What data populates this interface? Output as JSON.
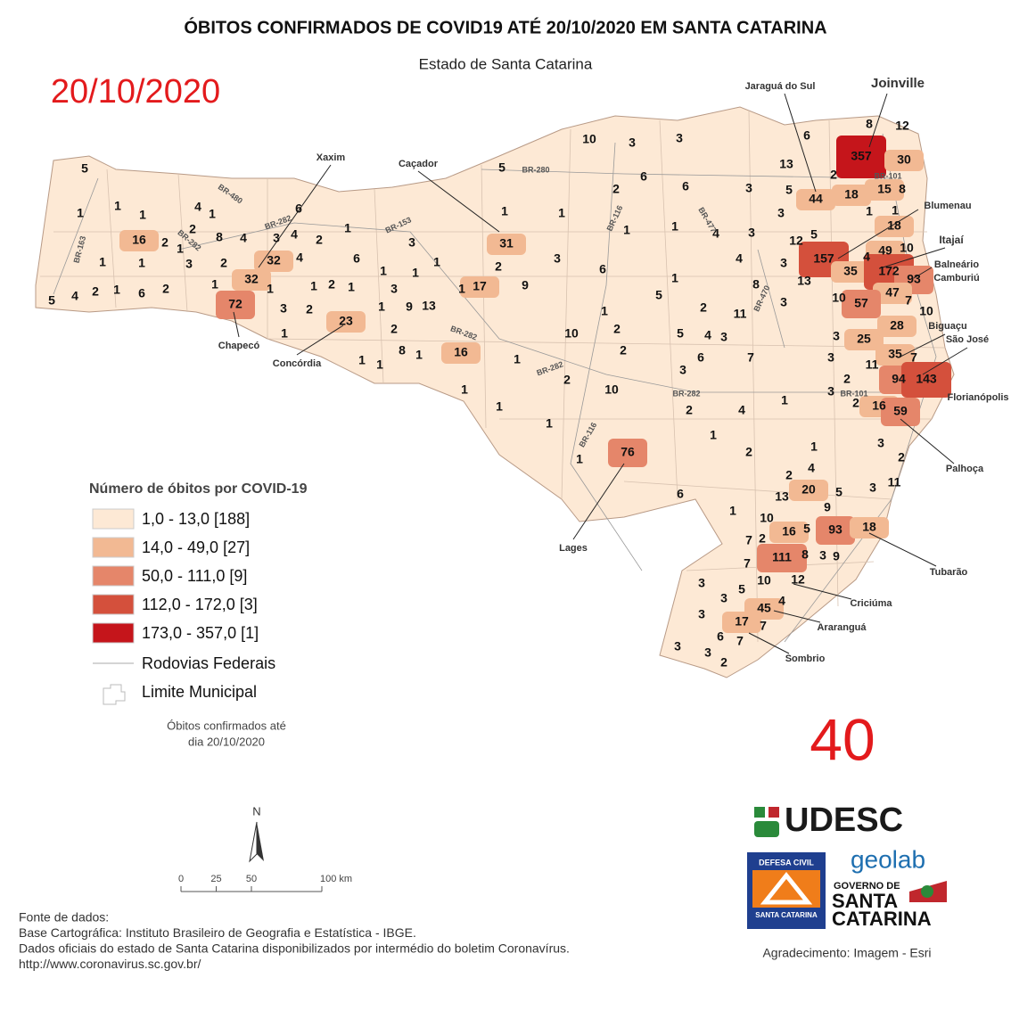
{
  "header": {
    "title": "ÓBITOS CONFIRMADOS DE COVID19 ATÉ 20/10/2020 EM SANTA CATARINA",
    "subtitle": "Estado de Santa Catarina",
    "date": "20/10/2020",
    "number": 40
  },
  "map": {
    "labels": [
      5,
      10,
      3,
      3,
      6,
      8,
      12,
      357,
      30,
      13,
      5,
      2,
      6,
      6,
      3,
      5,
      44,
      2,
      18,
      15,
      8,
      3,
      6,
      4,
      1,
      2,
      8,
      4,
      3,
      4,
      2,
      32,
      4,
      16,
      1,
      1,
      1,
      2,
      1,
      1,
      1,
      2,
      3,
      1,
      6,
      3,
      1,
      31,
      1,
      1,
      1,
      1,
      3,
      6,
      2,
      17,
      9,
      1,
      1,
      1,
      5,
      4,
      2,
      1,
      6,
      2,
      1,
      32,
      72,
      1,
      3,
      2,
      1,
      23,
      1,
      2,
      1,
      1,
      3,
      9,
      13,
      2,
      8,
      1,
      16,
      1,
      1,
      1,
      2,
      10,
      1,
      1,
      2,
      4,
      1,
      76,
      1,
      6,
      1,
      2,
      1,
      5,
      1,
      2,
      10,
      2,
      5,
      4,
      3,
      2,
      11,
      8,
      4,
      4,
      12,
      5,
      3,
      3,
      13,
      157,
      35,
      4,
      18,
      49,
      10,
      172,
      93,
      47,
      7,
      10,
      57,
      10,
      3,
      3,
      25,
      28,
      35,
      7,
      11,
      94,
      143,
      16,
      59,
      2,
      3,
      3,
      1,
      3,
      6,
      7,
      1,
      4,
      2,
      20,
      5,
      13,
      3,
      11,
      3,
      2,
      9,
      10,
      16,
      5,
      93,
      18,
      7,
      2,
      111,
      8,
      3,
      9,
      7,
      10,
      12,
      5,
      45,
      4,
      3,
      3,
      3,
      17,
      7,
      6,
      7,
      3,
      3,
      2,
      2,
      1,
      1,
      1
    ],
    "places": [
      "Xaxim",
      "Caçador",
      "Jaraguá do Sul",
      "Joinville",
      "Blumenau",
      "Itajaí",
      "Balneário",
      "Camburiú",
      "Biguaçu",
      "São José",
      "Florianópolis",
      "Palhoça",
      "Tubarão",
      "Criciúma",
      "Araranguá",
      "Sombrio",
      "Lages",
      "Chapecó",
      "Concórdia"
    ],
    "highways": [
      "BR-280",
      "BR-101",
      "BR-101",
      "BR-282",
      "BR-282",
      "BR-282",
      "BR-282",
      "BR-282",
      "BR-153",
      "BR-163",
      "BR-480",
      "BR-116",
      "BR-116",
      "BR-470",
      "BR-477"
    ]
  },
  "legend": {
    "title": "Número de óbitos por COVID-19",
    "classes": [
      {
        "label": "1,0 - 13,0 [188]",
        "color": "#fde9d5",
        "min": 1,
        "max": 13
      },
      {
        "label": "14,0 - 49,0 [27]",
        "color": "#f2b993",
        "min": 14,
        "max": 49
      },
      {
        "label": "50,0 - 111,0 [9]",
        "color": "#e5866a",
        "min": 50,
        "max": 111
      },
      {
        "label": "112,0 - 172,0 [3]",
        "color": "#d4503c",
        "min": 112,
        "max": 172
      },
      {
        "label": "173,0 - 357,0 [1]",
        "color": "#c5151b",
        "min": 173,
        "max": 357
      }
    ],
    "roads": "Rodovias Federais",
    "limits": "Limite Municipal",
    "note": [
      "Óbitos confirmados até",
      "dia 20/10/2020"
    ]
  },
  "scale": {
    "north": "N",
    "ticks": [
      0,
      25,
      50,
      {
        "value": 100,
        "label": "100 km"
      }
    ]
  },
  "source": [
    "Fonte de dados:",
    "Base Cartográfica: Instituto Brasileiro de Geografia e Estatística - IBGE.",
    "Dados oficiais do estado de Santa Catarina disponibilizados por intermédio do boletim Coronavírus.",
    "http://www.coronavirus.sc.gov.br/"
  ],
  "logos": {
    "udesc": "UDESC",
    "geolab": "geolab",
    "civil_top": "DEFESA CIVIL",
    "civil_bottom": "SANTA CATARINA",
    "gov": "GOVERNO DE",
    "gov_state1": "SANTA",
    "gov_state2": "CATARINA"
  },
  "credit": "Agradecimento: Imagem - Esri"
}
